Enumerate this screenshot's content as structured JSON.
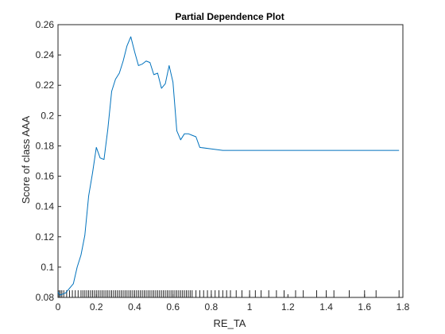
{
  "chart_data": {
    "type": "line",
    "title": "Partial Dependence Plot",
    "xlabel": "RE_TA",
    "ylabel": "Score of class AAA",
    "xlim": [
      0,
      1.8
    ],
    "ylim": [
      0.08,
      0.26
    ],
    "x_ticks": [
      "0",
      "0.2",
      "0.4",
      "0.6",
      "0.8",
      "1",
      "1.2",
      "1.4",
      "1.6",
      "1.8"
    ],
    "y_ticks": [
      "0.08",
      "0.1",
      "0.12",
      "0.14",
      "0.16",
      "0.18",
      "0.2",
      "0.22",
      "0.24",
      "0.26"
    ],
    "grid": false,
    "series": [
      {
        "color": "#0072BD",
        "x": [
          0.0,
          0.01,
          0.02,
          0.04,
          0.06,
          0.08,
          0.1,
          0.12,
          0.14,
          0.16,
          0.18,
          0.2,
          0.22,
          0.24,
          0.26,
          0.28,
          0.3,
          0.32,
          0.34,
          0.36,
          0.38,
          0.4,
          0.42,
          0.44,
          0.46,
          0.48,
          0.5,
          0.52,
          0.54,
          0.56,
          0.58,
          0.6,
          0.62,
          0.64,
          0.66,
          0.68,
          0.7,
          0.72,
          0.74,
          0.8,
          0.86,
          1.0,
          1.2,
          1.4,
          1.6,
          1.78
        ],
        "y": [
          0.0835,
          0.0815,
          0.082,
          0.083,
          0.086,
          0.089,
          0.1,
          0.108,
          0.121,
          0.147,
          0.162,
          0.179,
          0.172,
          0.171,
          0.191,
          0.216,
          0.224,
          0.228,
          0.236,
          0.246,
          0.252,
          0.242,
          0.233,
          0.234,
          0.236,
          0.235,
          0.227,
          0.228,
          0.218,
          0.221,
          0.233,
          0.222,
          0.19,
          0.184,
          0.188,
          0.188,
          0.187,
          0.186,
          0.179,
          0.178,
          0.177,
          0.177,
          0.177,
          0.177,
          0.177,
          0.177
        ]
      }
    ],
    "rug_x": [
      0.005,
      0.012,
      0.02,
      0.03,
      0.045,
      0.06,
      0.075,
      0.09,
      0.105,
      0.12,
      0.13,
      0.14,
      0.15,
      0.16,
      0.17,
      0.18,
      0.19,
      0.2,
      0.21,
      0.22,
      0.23,
      0.24,
      0.25,
      0.26,
      0.27,
      0.28,
      0.29,
      0.3,
      0.31,
      0.32,
      0.33,
      0.34,
      0.35,
      0.36,
      0.37,
      0.38,
      0.39,
      0.4,
      0.41,
      0.42,
      0.43,
      0.44,
      0.45,
      0.46,
      0.47,
      0.48,
      0.49,
      0.5,
      0.51,
      0.52,
      0.53,
      0.54,
      0.55,
      0.56,
      0.57,
      0.58,
      0.59,
      0.6,
      0.61,
      0.62,
      0.63,
      0.64,
      0.65,
      0.66,
      0.67,
      0.68,
      0.69,
      0.7,
      0.72,
      0.74,
      0.76,
      0.78,
      0.8,
      0.82,
      0.84,
      0.86,
      0.88,
      0.9,
      0.93,
      0.96,
      1.0,
      1.03,
      1.06,
      1.1,
      1.14,
      1.18,
      1.24,
      1.28,
      1.35,
      1.4,
      1.44,
      1.52,
      1.6,
      1.66,
      1.78
    ]
  }
}
